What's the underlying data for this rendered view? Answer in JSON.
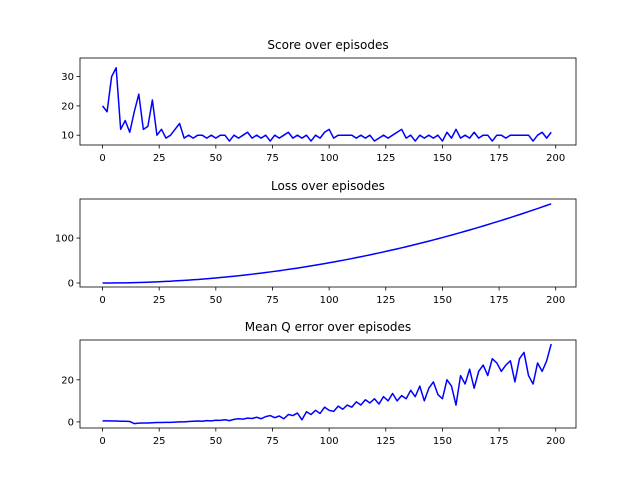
{
  "chart_data": [
    {
      "type": "line",
      "title": "Score over episodes",
      "x": [
        0,
        2,
        4,
        6,
        8,
        10,
        12,
        14,
        16,
        18,
        20,
        22,
        24,
        26,
        28,
        30,
        32,
        34,
        36,
        38,
        40,
        42,
        44,
        46,
        48,
        50,
        52,
        54,
        56,
        58,
        60,
        62,
        64,
        66,
        68,
        70,
        72,
        74,
        76,
        78,
        80,
        82,
        84,
        86,
        88,
        90,
        92,
        94,
        96,
        98,
        100,
        102,
        104,
        106,
        108,
        110,
        112,
        114,
        116,
        118,
        120,
        122,
        124,
        126,
        128,
        130,
        132,
        134,
        136,
        138,
        140,
        142,
        144,
        146,
        148,
        150,
        152,
        154,
        156,
        158,
        160,
        162,
        164,
        166,
        168,
        170,
        172,
        174,
        176,
        178,
        180,
        182,
        184,
        186,
        188,
        190,
        192,
        194,
        196,
        198
      ],
      "series": [
        {
          "color": "#0000ff",
          "values": [
            20,
            18,
            30,
            33,
            12,
            15,
            11,
            18,
            24,
            12,
            13,
            22,
            10,
            12,
            9,
            10,
            12,
            14,
            9,
            10,
            9,
            10,
            10,
            9,
            10,
            9,
            10,
            10,
            8,
            10,
            9,
            10,
            11,
            9,
            10,
            9,
            10,
            8,
            10,
            9,
            10,
            11,
            9,
            10,
            9,
            10,
            8,
            10,
            9,
            11,
            12,
            9,
            10,
            10,
            10,
            10,
            9,
            10,
            9,
            10,
            8,
            9,
            10,
            9,
            10,
            11,
            12,
            9,
            10,
            8,
            10,
            9,
            10,
            9,
            10,
            8,
            11,
            9,
            12,
            9,
            10,
            9,
            11,
            9,
            10,
            10,
            8,
            10,
            10,
            9,
            10,
            10,
            10,
            10,
            10,
            8,
            10,
            11,
            9,
            11
          ]
        }
      ],
      "xlim": [
        -9.95,
        208.95
      ],
      "xticks": [
        0,
        25,
        50,
        75,
        100,
        125,
        150,
        175,
        200
      ],
      "ylim": [
        6.65,
        36.35
      ],
      "yticks": [
        10,
        20,
        30
      ]
    },
    {
      "type": "line",
      "title": "Loss over episodes",
      "x": [
        0,
        2,
        4,
        6,
        8,
        10,
        12,
        14,
        16,
        18,
        20,
        22,
        24,
        26,
        28,
        30,
        32,
        34,
        36,
        38,
        40,
        42,
        44,
        46,
        48,
        50,
        52,
        54,
        56,
        58,
        60,
        62,
        64,
        66,
        68,
        70,
        72,
        74,
        76,
        78,
        80,
        82,
        84,
        86,
        88,
        90,
        92,
        94,
        96,
        98,
        100,
        102,
        104,
        106,
        108,
        110,
        112,
        114,
        116,
        118,
        120,
        122,
        124,
        126,
        128,
        130,
        132,
        134,
        136,
        138,
        140,
        142,
        144,
        146,
        148,
        150,
        152,
        154,
        156,
        158,
        160,
        162,
        164,
        166,
        168,
        170,
        172,
        174,
        176,
        178,
        180,
        182,
        184,
        186,
        188,
        190,
        192,
        194,
        196,
        198
      ],
      "series": [
        {
          "color": "#0000ff",
          "values": [
            0,
            0,
            0.1,
            0.2,
            0.3,
            0.4,
            0.6,
            0.9,
            1.2,
            1.5,
            1.8,
            2.2,
            2.6,
            3,
            3.5,
            4,
            4.6,
            5.2,
            5.8,
            6.5,
            7.2,
            7.9,
            8.7,
            9.5,
            10.4,
            11.2,
            12.2,
            13.1,
            14.1,
            15.1,
            16.2,
            17.3,
            18.4,
            19.6,
            20.8,
            22,
            23.3,
            24.6,
            26,
            27.3,
            28.8,
            30.2,
            31.7,
            33.2,
            34.8,
            36.4,
            38,
            39.7,
            41.4,
            43.2,
            45,
            46.8,
            48.6,
            50.5,
            52.4,
            54.4,
            56.4,
            58.4,
            60.5,
            62.6,
            64.7,
            66.9,
            69.1,
            71.4,
            73.6,
            76,
            78.3,
            80.7,
            83.1,
            85.6,
            88.1,
            90.6,
            93.2,
            95.8,
            98.5,
            101.1,
            103.9,
            106.6,
            109.4,
            112.2,
            115.1,
            118,
            120.9,
            123.9,
            126.9,
            129.9,
            133,
            136.1,
            139.2,
            142.4,
            145.6,
            148.9,
            152.2,
            155.5,
            158.9,
            162.3,
            165.7,
            169.2,
            172.7,
            176.2
          ]
        }
      ],
      "xlim": [
        -9.95,
        208.95
      ],
      "xticks": [
        0,
        25,
        50,
        75,
        100,
        125,
        150,
        175,
        200
      ],
      "ylim": [
        -8.9,
        186.9
      ],
      "yticks": [
        0,
        100
      ]
    },
    {
      "type": "line",
      "title": "Mean Q error over episodes",
      "x": [
        0,
        2,
        4,
        6,
        8,
        10,
        12,
        14,
        16,
        18,
        20,
        22,
        24,
        26,
        28,
        30,
        32,
        34,
        36,
        38,
        40,
        42,
        44,
        46,
        48,
        50,
        52,
        54,
        56,
        58,
        60,
        62,
        64,
        66,
        68,
        70,
        72,
        74,
        76,
        78,
        80,
        82,
        84,
        86,
        88,
        90,
        92,
        94,
        96,
        98,
        100,
        102,
        104,
        106,
        108,
        110,
        112,
        114,
        116,
        118,
        120,
        122,
        124,
        126,
        128,
        130,
        132,
        134,
        136,
        138,
        140,
        142,
        144,
        146,
        148,
        150,
        152,
        154,
        156,
        158,
        160,
        162,
        164,
        166,
        168,
        170,
        172,
        174,
        176,
        178,
        180,
        182,
        184,
        186,
        188,
        190,
        192,
        194,
        196,
        198
      ],
      "series": [
        {
          "color": "#0000ff",
          "values": [
            0.5,
            0.5,
            0.4,
            0.4,
            0.3,
            0.3,
            0.2,
            -0.8,
            -0.6,
            -0.5,
            -0.5,
            -0.4,
            -0.3,
            -0.3,
            -0.2,
            -0.2,
            -0.1,
            0,
            0,
            0.2,
            0.3,
            0.4,
            0.3,
            0.6,
            0.5,
            0.8,
            0.7,
            1,
            0.6,
            1.2,
            1.5,
            1.3,
            1.8,
            1.6,
            2.2,
            1.5,
            2.5,
            3,
            2,
            2.8,
            1.5,
            3.5,
            3,
            4.2,
            1,
            4.8,
            3.5,
            5.5,
            4,
            7,
            5.5,
            5,
            7.5,
            6,
            8,
            7,
            9.5,
            8,
            10.5,
            9,
            11,
            8.5,
            12,
            10,
            13.5,
            10,
            12.5,
            11,
            15,
            12,
            17,
            10,
            16,
            19,
            13,
            11,
            20,
            17,
            8,
            22,
            18,
            25,
            16,
            24,
            27,
            22,
            30,
            28,
            24,
            27,
            29,
            19,
            30,
            33,
            22,
            18,
            28,
            24,
            29,
            37
          ]
        }
      ],
      "xlim": [
        -9.95,
        208.95
      ],
      "xticks": [
        0,
        25,
        50,
        75,
        100,
        125,
        150,
        175,
        200
      ],
      "ylim": [
        -2.9,
        38.9
      ],
      "yticks": [
        0,
        20
      ]
    }
  ]
}
